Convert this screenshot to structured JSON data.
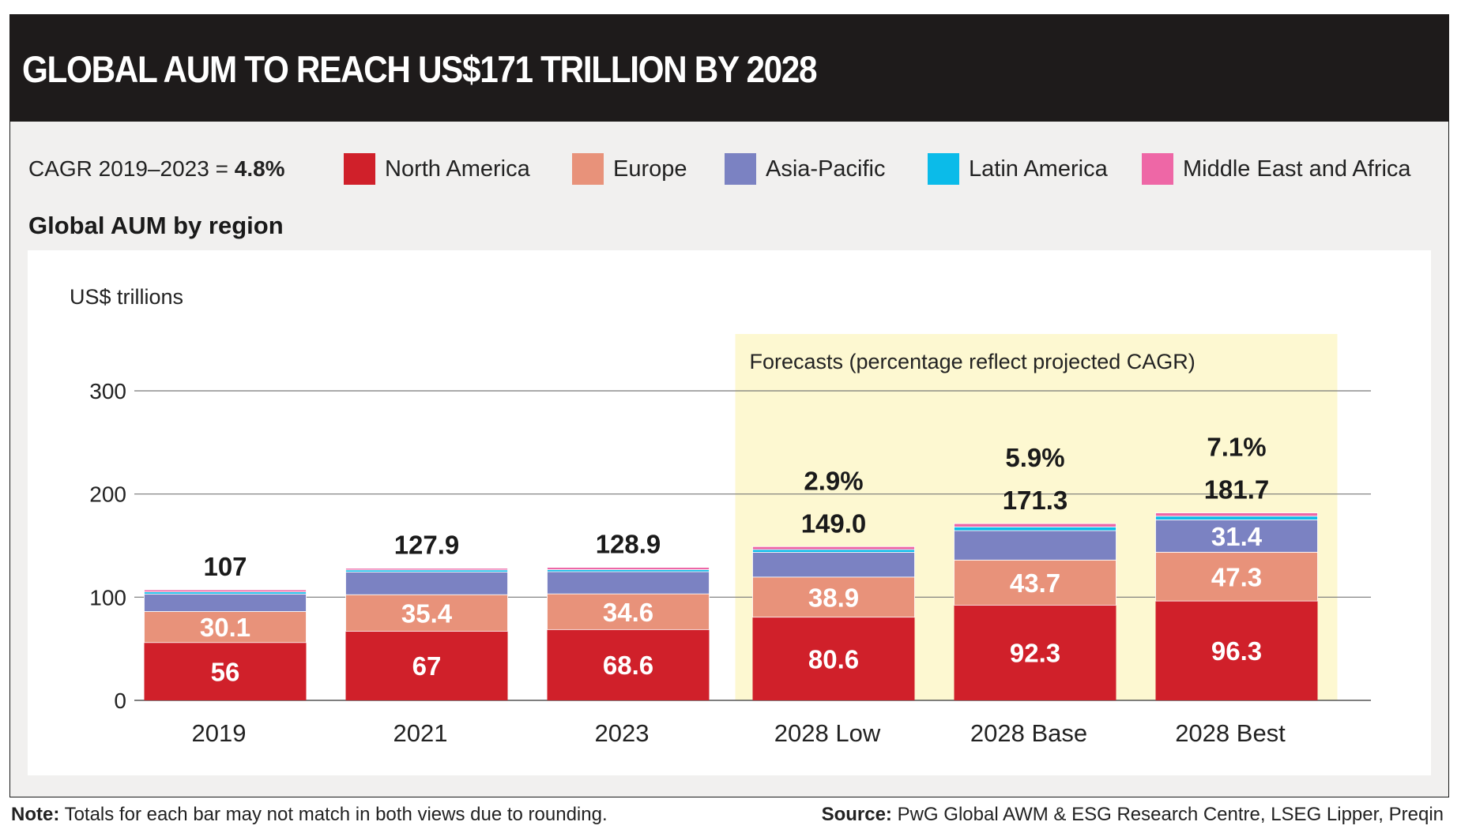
{
  "header": {
    "title": "GLOBAL AUM TO REACH US$171 TRILLION BY 2028"
  },
  "cagr": {
    "label": "CAGR 2019–2023 = ",
    "value": "4.8%"
  },
  "legend": [
    {
      "name": "North America",
      "color": "#d0202a"
    },
    {
      "name": "Europe",
      "color": "#e8927a"
    },
    {
      "name": "Asia-Pacific",
      "color": "#7b82c2"
    },
    {
      "name": "Latin America",
      "color": "#0bbbe9"
    },
    {
      "name": "Middle East and Africa",
      "color": "#ee67a6"
    }
  ],
  "subtitle": "Global AUM by region",
  "forecast_label": "Forecasts (percentage reflect projected CAGR)",
  "forecast_color": "#fdf8d1",
  "chart_data": {
    "type": "bar",
    "stacked": true,
    "ylabel": "US$ trillions",
    "ylim": [
      0,
      300
    ],
    "yticks": [
      0,
      100,
      200,
      300
    ],
    "grid": true,
    "categories": [
      "2019",
      "2021",
      "2023",
      "2028 Low",
      "2028 Base",
      "2028 Best"
    ],
    "series": [
      {
        "name": "North America",
        "values": [
          56,
          67,
          68.6,
          80.6,
          92.3,
          96.3
        ],
        "labels": [
          "56",
          "67",
          "68.6",
          "80.6",
          "92.3",
          "96.3"
        ]
      },
      {
        "name": "Europe",
        "values": [
          30.1,
          35.4,
          34.6,
          38.9,
          43.7,
          47.3
        ],
        "labels": [
          "30.1",
          "35.4",
          "34.6",
          "38.9",
          "43.7",
          "47.3"
        ]
      },
      {
        "name": "Asia-Pacific",
        "values": [
          17,
          22,
          21.5,
          24,
          28.5,
          31.4
        ],
        "labels": [
          "",
          "",
          "",
          "",
          "",
          "31.4"
        ]
      },
      {
        "name": "Latin America",
        "values": [
          2,
          2,
          2,
          2.6,
          3.6,
          3.5
        ],
        "labels": [
          "",
          "",
          "",
          "",
          "",
          ""
        ]
      },
      {
        "name": "Middle East and Africa",
        "values": [
          2,
          1.6,
          2.2,
          2.9,
          3.2,
          3.2
        ],
        "labels": [
          "",
          "",
          "",
          "",
          "",
          ""
        ]
      }
    ],
    "totals": [
      "107",
      "127.9",
      "128.9",
      "149.0",
      "171.3",
      "181.7"
    ],
    "forecast_cagr": [
      "",
      "",
      "",
      "2.9%",
      "5.9%",
      "7.1%"
    ]
  },
  "footer": {
    "note_label": "Note:",
    "note": "Totals for each bar may not match in both views due to rounding.",
    "source_label": "Source:",
    "source": "PwG Global AWM & ESG Research Centre, LSEG Lipper, Preqin"
  }
}
